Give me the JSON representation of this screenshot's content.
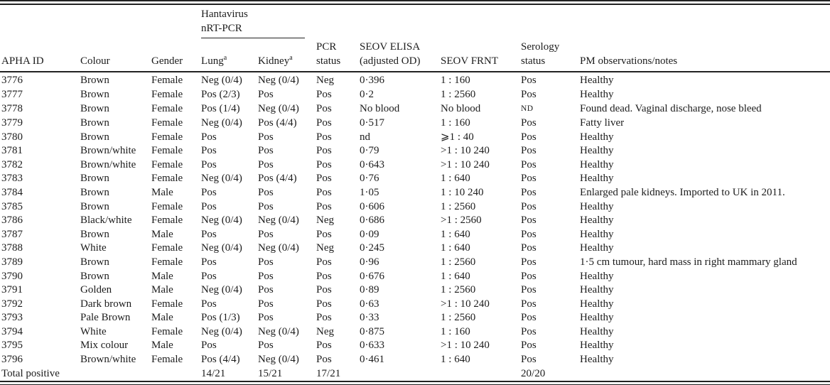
{
  "table": {
    "group_header": {
      "label": "Hantavirus\nnRT-PCR"
    },
    "columns": [
      {
        "key": "apha_id",
        "label": "APHA ID"
      },
      {
        "key": "colour",
        "label": "Colour"
      },
      {
        "key": "gender",
        "label": "Gender"
      },
      {
        "key": "lung",
        "label": "Lung",
        "sup": "a"
      },
      {
        "key": "kidney",
        "label": "Kidney",
        "sup": "a"
      },
      {
        "key": "pcr_status",
        "label": "PCR\nstatus"
      },
      {
        "key": "seov_elisa",
        "label": "SEOV ELISA\n(adjusted OD)"
      },
      {
        "key": "seov_frnt",
        "label": "SEOV FRNT"
      },
      {
        "key": "serology_status",
        "label": "Serology\nstatus"
      },
      {
        "key": "pm_notes",
        "label": "PM observations/notes"
      }
    ],
    "nd_marker": "ND",
    "rows": [
      {
        "apha_id": "3776",
        "colour": "Brown",
        "gender": "Female",
        "lung": "Neg (0/4)",
        "kidney": "Neg (0/4)",
        "pcr_status": "Neg",
        "seov_elisa": "0·396",
        "seov_frnt": "1 : 160",
        "serology_status": "Pos",
        "pm_notes": "Healthy"
      },
      {
        "apha_id": "3777",
        "colour": "Brown",
        "gender": "Female",
        "lung": "Pos (2/3)",
        "kidney": "Pos",
        "pcr_status": "Pos",
        "seov_elisa": "0·2",
        "seov_frnt": "1 : 2560",
        "serology_status": "Pos",
        "pm_notes": "Healthy"
      },
      {
        "apha_id": "3778",
        "colour": "Brown",
        "gender": "Female",
        "lung": "Pos (1/4)",
        "kidney": "Neg (0/4)",
        "pcr_status": "Pos",
        "seov_elisa": "No blood",
        "seov_frnt": "No blood",
        "serology_status": "ND",
        "pm_notes": "Found dead. Vaginal discharge, nose bleed"
      },
      {
        "apha_id": "3779",
        "colour": "Brown",
        "gender": "Female",
        "lung": "Neg (0/4)",
        "kidney": "Pos (4/4)",
        "pcr_status": "Pos",
        "seov_elisa": "0·517",
        "seov_frnt": "1 : 160",
        "serology_status": "Pos",
        "pm_notes": "Fatty liver"
      },
      {
        "apha_id": "3780",
        "colour": "Brown",
        "gender": "Female",
        "lung": "Pos",
        "kidney": "Pos",
        "pcr_status": "Pos",
        "seov_elisa": "nd",
        "seov_frnt": "⩾1 : 40",
        "serology_status": "Pos",
        "pm_notes": "Healthy"
      },
      {
        "apha_id": "3781",
        "colour": "Brown/white",
        "gender": "Female",
        "lung": "Pos",
        "kidney": "Pos",
        "pcr_status": "Pos",
        "seov_elisa": "0·79",
        "seov_frnt": ">1 : 10 240",
        "serology_status": "Pos",
        "pm_notes": "Healthy"
      },
      {
        "apha_id": "3782",
        "colour": "Brown/white",
        "gender": "Female",
        "lung": "Pos",
        "kidney": "Pos",
        "pcr_status": "Pos",
        "seov_elisa": "0·643",
        "seov_frnt": ">1 : 10 240",
        "serology_status": "Pos",
        "pm_notes": "Healthy"
      },
      {
        "apha_id": "3783",
        "colour": "Brown",
        "gender": "Female",
        "lung": "Neg (0/4)",
        "kidney": "Pos (4/4)",
        "pcr_status": "Pos",
        "seov_elisa": "0·76",
        "seov_frnt": "1 : 640",
        "serology_status": "Pos",
        "pm_notes": "Healthy"
      },
      {
        "apha_id": "3784",
        "colour": "Brown",
        "gender": "Male",
        "lung": "Pos",
        "kidney": "Pos",
        "pcr_status": "Pos",
        "seov_elisa": "1·05",
        "seov_frnt": "1 : 10 240",
        "serology_status": "Pos",
        "pm_notes": "Enlarged pale kidneys. Imported to UK in 2011."
      },
      {
        "apha_id": "3785",
        "colour": "Brown",
        "gender": "Female",
        "lung": "Pos",
        "kidney": "Pos",
        "pcr_status": "Pos",
        "seov_elisa": "0·606",
        "seov_frnt": "1 : 2560",
        "serology_status": "Pos",
        "pm_notes": "Healthy"
      },
      {
        "apha_id": "3786",
        "colour": "Black/white",
        "gender": "Female",
        "lung": "Neg (0/4)",
        "kidney": "Neg (0/4)",
        "pcr_status": "Neg",
        "seov_elisa": "0·686",
        "seov_frnt": ">1 : 2560",
        "serology_status": "Pos",
        "pm_notes": "Healthy"
      },
      {
        "apha_id": "3787",
        "colour": "Brown",
        "gender": "Male",
        "lung": "Pos",
        "kidney": "Pos",
        "pcr_status": "Pos",
        "seov_elisa": "0·09",
        "seov_frnt": "1 : 640",
        "serology_status": "Pos",
        "pm_notes": "Healthy"
      },
      {
        "apha_id": "3788",
        "colour": "White",
        "gender": "Female",
        "lung": "Neg (0/4)",
        "kidney": "Neg (0/4)",
        "pcr_status": "Neg",
        "seov_elisa": "0·245",
        "seov_frnt": "1 : 640",
        "serology_status": "Pos",
        "pm_notes": "Healthy"
      },
      {
        "apha_id": "3789",
        "colour": "Brown",
        "gender": "Female",
        "lung": "Pos",
        "kidney": "Pos",
        "pcr_status": "Pos",
        "seov_elisa": "0·96",
        "seov_frnt": "1 : 2560",
        "serology_status": "Pos",
        "pm_notes": "1·5 cm tumour, hard mass in right mammary gland"
      },
      {
        "apha_id": "3790",
        "colour": "Brown",
        "gender": "Male",
        "lung": "Pos",
        "kidney": "Pos",
        "pcr_status": "Pos",
        "seov_elisa": "0·676",
        "seov_frnt": "1 : 640",
        "serology_status": "Pos",
        "pm_notes": "Healthy"
      },
      {
        "apha_id": "3791",
        "colour": "Golden",
        "gender": "Male",
        "lung": "Neg (0/4)",
        "kidney": "Pos",
        "pcr_status": "Pos",
        "seov_elisa": "0·89",
        "seov_frnt": "1 : 2560",
        "serology_status": "Pos",
        "pm_notes": "Healthy"
      },
      {
        "apha_id": "3792",
        "colour": "Dark brown",
        "gender": "Female",
        "lung": "Pos",
        "kidney": "Pos",
        "pcr_status": "Pos",
        "seov_elisa": "0·63",
        "seov_frnt": ">1 : 10 240",
        "serology_status": "Pos",
        "pm_notes": "Healthy"
      },
      {
        "apha_id": "3793",
        "colour": "Pale Brown",
        "gender": "Male",
        "lung": "Pos (1/3)",
        "kidney": "Pos",
        "pcr_status": "Pos",
        "seov_elisa": "0·33",
        "seov_frnt": "1 : 2560",
        "serology_status": "Pos",
        "pm_notes": "Healthy"
      },
      {
        "apha_id": "3794",
        "colour": "White",
        "gender": "Female",
        "lung": "Neg (0/4)",
        "kidney": "Neg (0/4)",
        "pcr_status": "Neg",
        "seov_elisa": "0·875",
        "seov_frnt": "1 : 160",
        "serology_status": "Pos",
        "pm_notes": "Healthy"
      },
      {
        "apha_id": "3795",
        "colour": "Mix colour",
        "gender": "Male",
        "lung": "Pos",
        "kidney": "Pos",
        "pcr_status": "Pos",
        "seov_elisa": "0·633",
        "seov_frnt": ">1 : 10 240",
        "serology_status": "Pos",
        "pm_notes": "Healthy"
      },
      {
        "apha_id": "3796",
        "colour": "Brown/white",
        "gender": "Female",
        "lung": "Pos (4/4)",
        "kidney": "Neg (0/4)",
        "pcr_status": "Pos",
        "seov_elisa": "0·461",
        "seov_frnt": "1 : 640",
        "serology_status": "Pos",
        "pm_notes": "Healthy"
      }
    ],
    "total_row": {
      "apha_id": "Total positive",
      "colour": "",
      "gender": "",
      "lung": "14/21",
      "kidney": "15/21",
      "pcr_status": "17/21",
      "seov_elisa": "",
      "seov_frnt": "",
      "serology_status": "20/20",
      "pm_notes": ""
    }
  }
}
